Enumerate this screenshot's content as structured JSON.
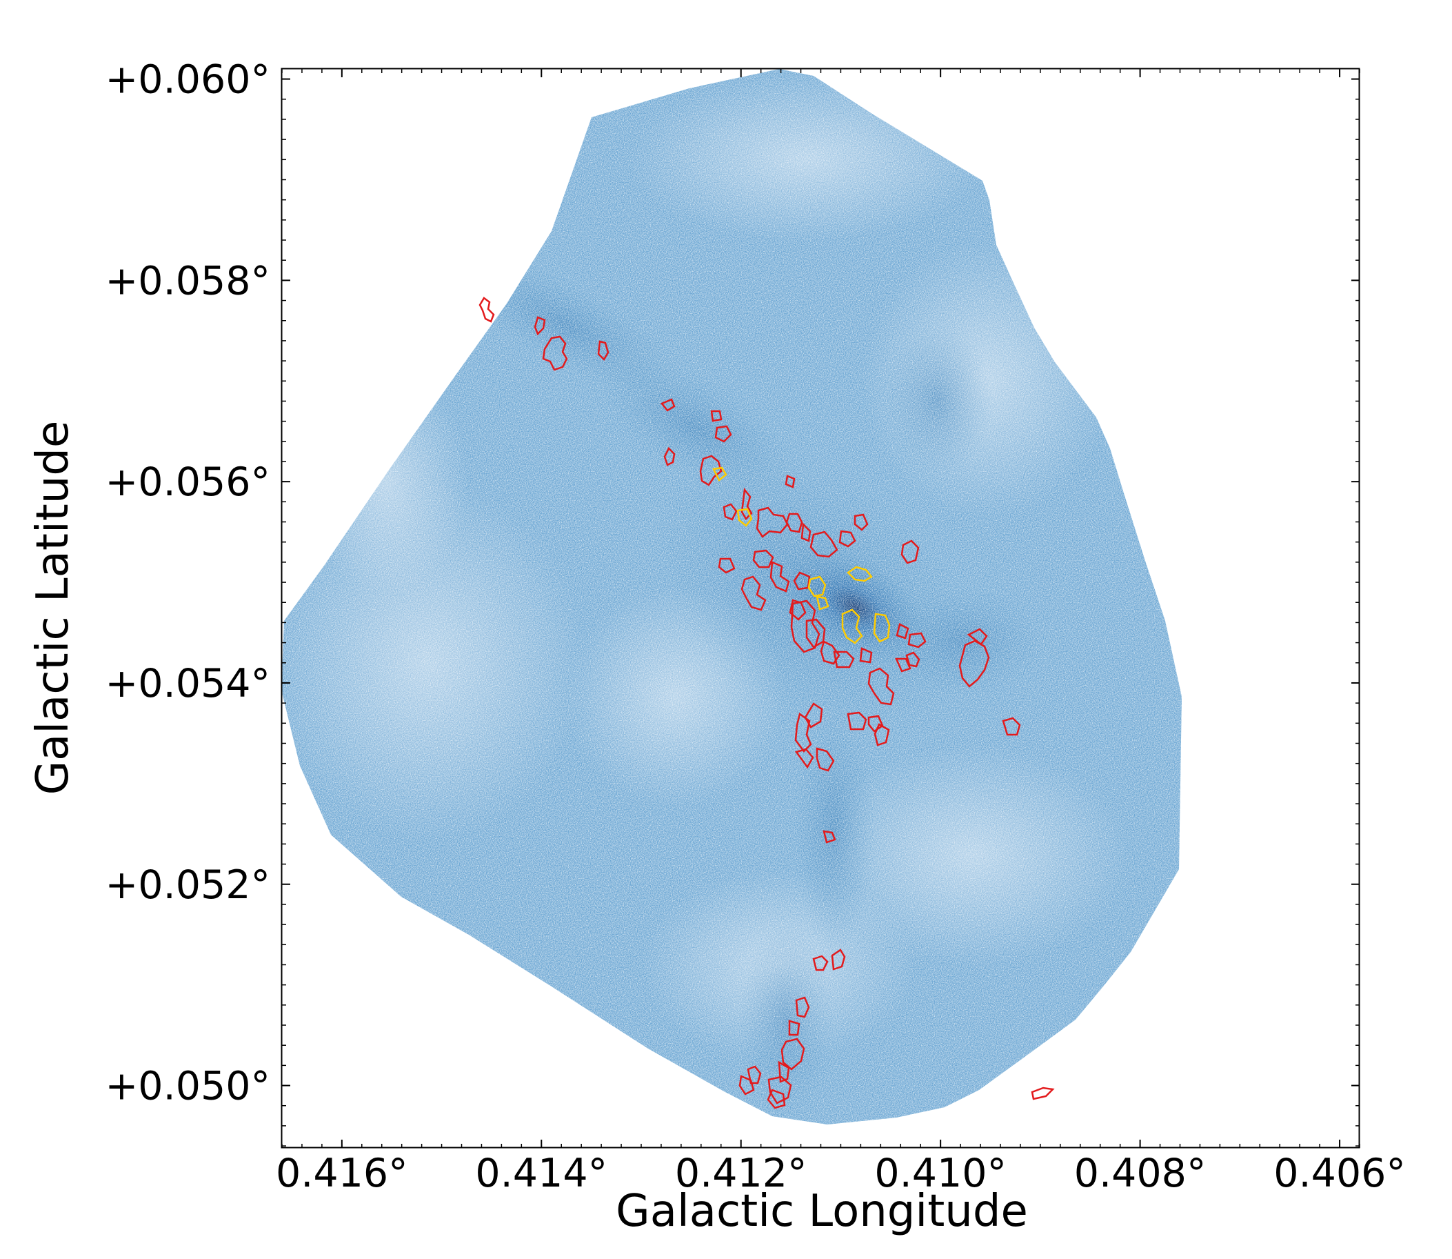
{
  "figure": {
    "type": "astronomical-image",
    "x_axis": {
      "label": "Galactic Longitude",
      "range": [
        0.4166,
        0.4058
      ],
      "ticks": [
        {
          "value": 0.416,
          "label": "0.416°"
        },
        {
          "value": 0.414,
          "label": "0.414°"
        },
        {
          "value": 0.412,
          "label": "0.412°"
        },
        {
          "value": 0.41,
          "label": "0.410°"
        },
        {
          "value": 0.408,
          "label": "0.408°"
        },
        {
          "value": 0.406,
          "label": "0.406°"
        }
      ]
    },
    "y_axis": {
      "label": "Galactic Latitude",
      "range": [
        0.04938,
        0.0601
      ],
      "ticks": [
        {
          "value": 0.06,
          "label": "+0.060°"
        },
        {
          "value": 0.058,
          "label": "+0.058°"
        },
        {
          "value": 0.056,
          "label": "+0.056°"
        },
        {
          "value": 0.054,
          "label": "+0.054°"
        },
        {
          "value": 0.052,
          "label": "+0.052°"
        },
        {
          "value": 0.05,
          "label": "+0.050°"
        }
      ]
    },
    "colormap": "Blues",
    "contour_colors": {
      "low": "#e31a1c",
      "high": "#ffcc00"
    }
  }
}
